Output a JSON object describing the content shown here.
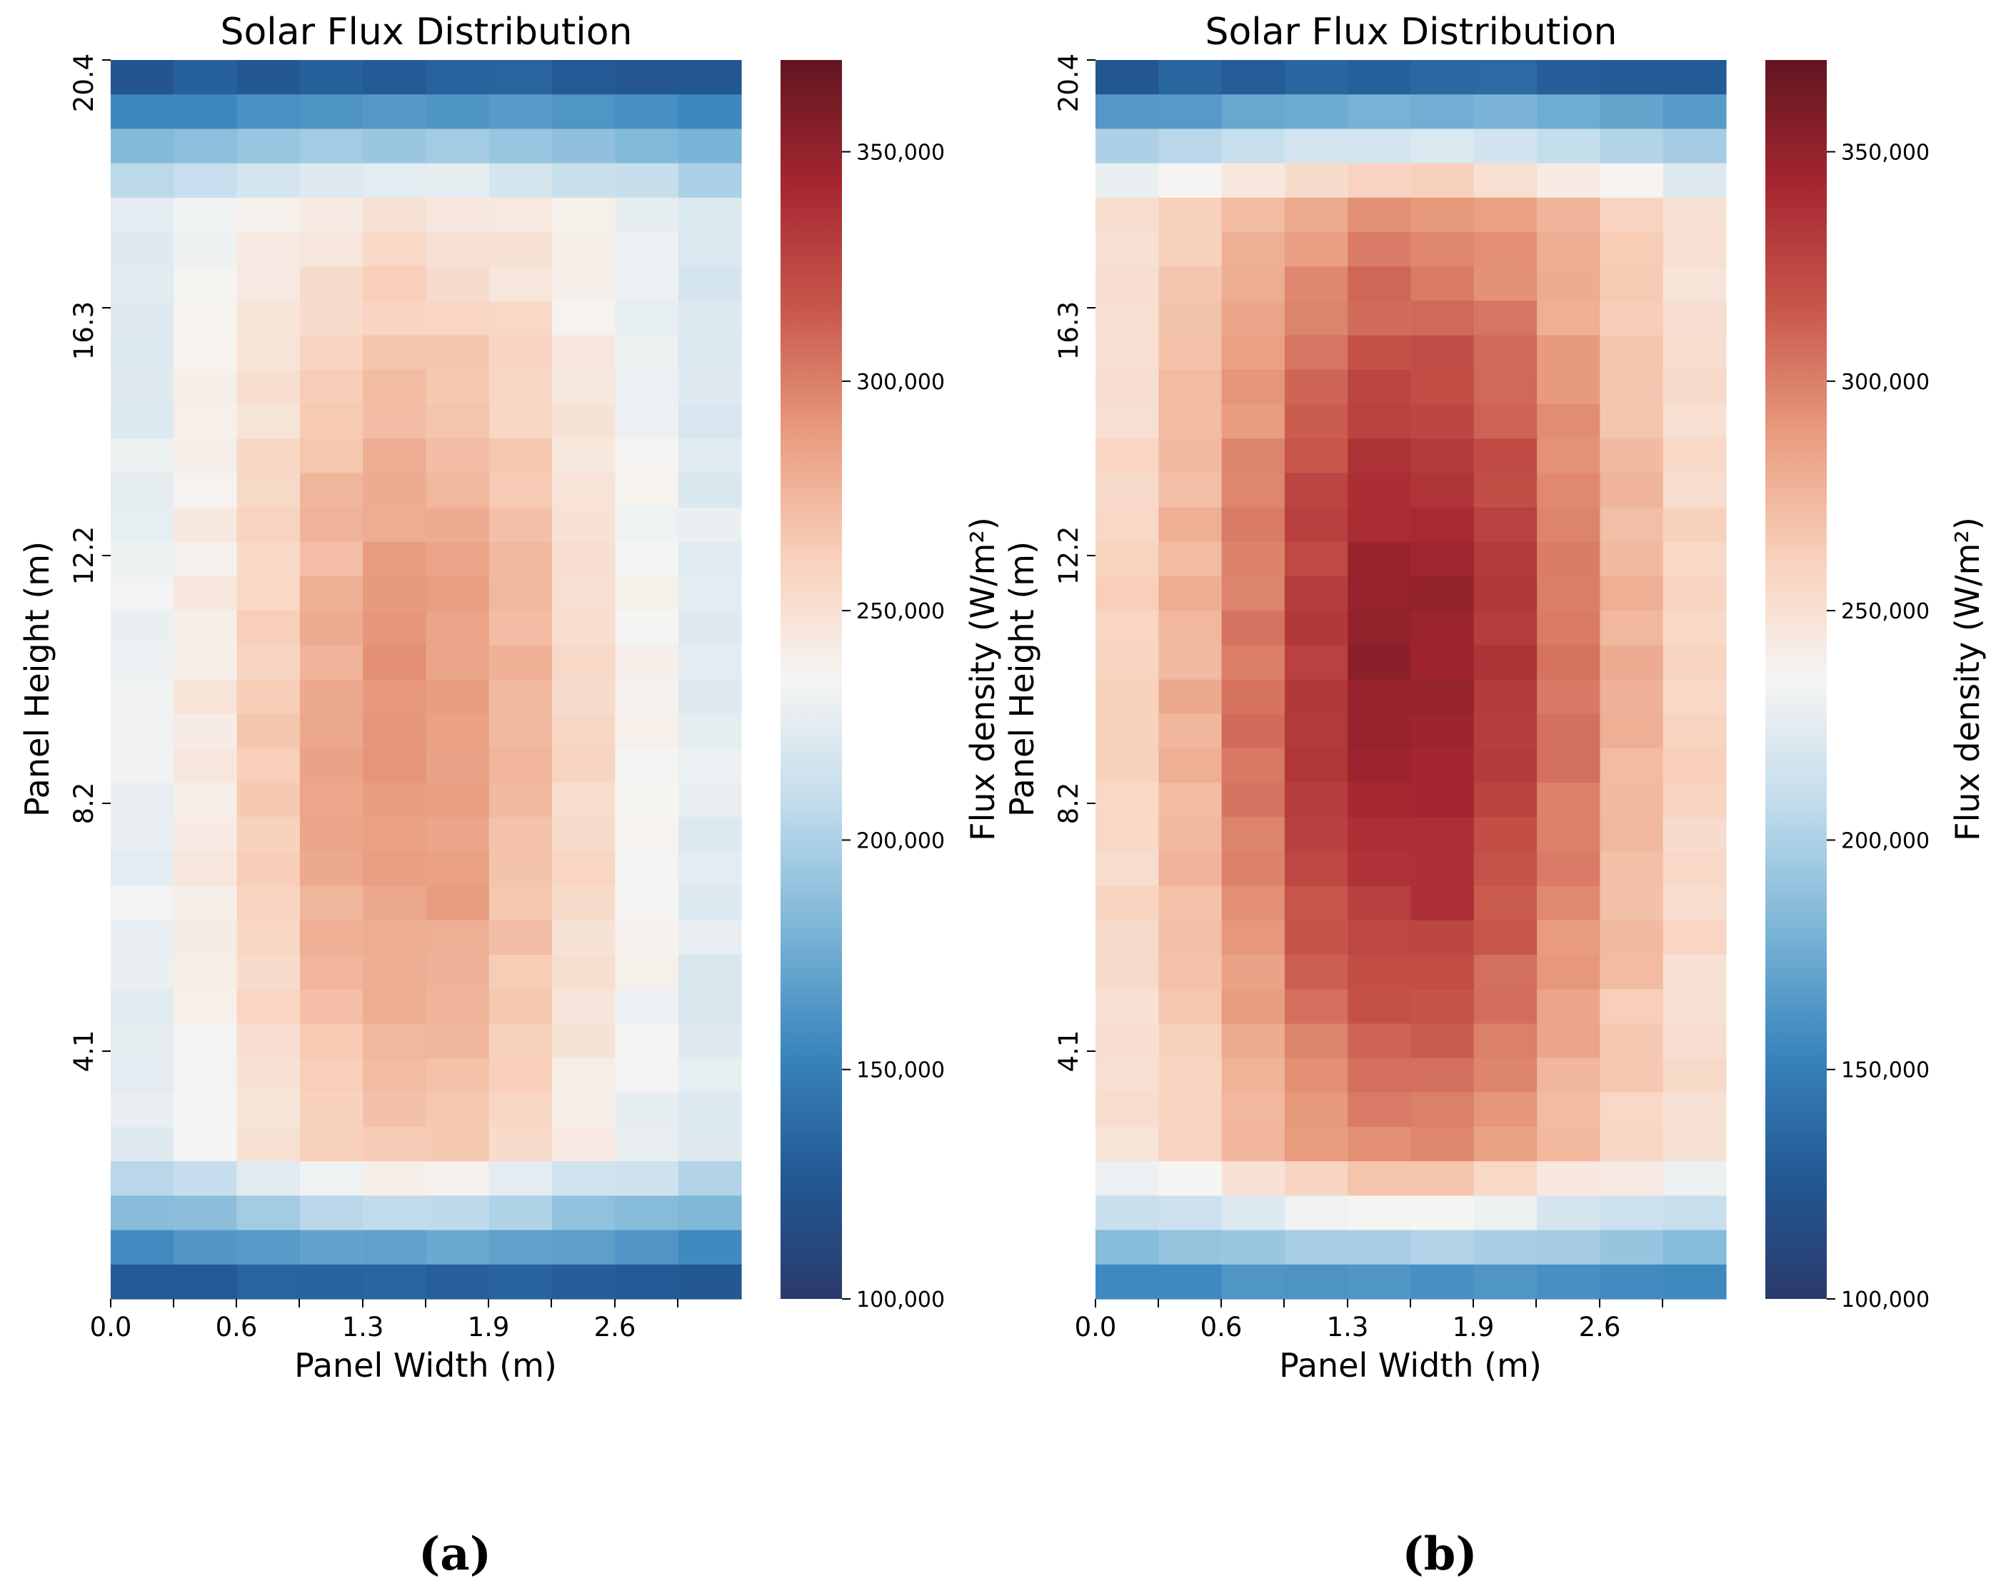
{
  "chart_data": [
    {
      "type": "heatmap",
      "panel_caption": "(a)",
      "title": "Solar Flux Distribution",
      "xlabel": "Panel Width (m)",
      "ylabel": "Panel Height (m)",
      "x_tick_labels": [
        "0.0",
        "0.6",
        "1.3",
        "1.9",
        "2.6"
      ],
      "y_tick_labels": [
        "20.4",
        "16.3",
        "12.2",
        "8.2",
        "4.1"
      ],
      "x_range": [
        0.0,
        3.2
      ],
      "y_range": [
        0.0,
        20.4
      ],
      "grid": false,
      "n_cols": 10,
      "n_rows": 36,
      "colormap": "RdBu_r",
      "colorbar": {
        "label": "Flux density (W/m²)",
        "range": [
          100000,
          370000
        ],
        "ticks": [
          "100,000",
          "150,000",
          "200,000",
          "250,000",
          "300,000",
          "350,000"
        ],
        "tick_values": [
          100000,
          150000,
          200000,
          250000,
          300000,
          350000
        ]
      },
      "field": {
        "peak_value": 292000,
        "peak_x_frac": 0.48,
        "peak_y_frac": 0.55,
        "sigma_x": 0.3,
        "sigma_y": 0.33,
        "top_value": 108000,
        "bottom_value": 110000,
        "side_value": 215000
      }
    },
    {
      "type": "heatmap",
      "panel_caption": "(b)",
      "title": "Solar Flux Distribution",
      "xlabel": "Panel Width (m)",
      "ylabel": "Panel Height (m)",
      "x_tick_labels": [
        "0.0",
        "0.6",
        "1.3",
        "1.9",
        "2.6"
      ],
      "y_tick_labels": [
        "20.4",
        "16.3",
        "12.2",
        "8.2",
        "4.1"
      ],
      "x_range": [
        0.0,
        3.2
      ],
      "y_range": [
        0.0,
        20.4
      ],
      "grid": false,
      "n_cols": 10,
      "n_rows": 36,
      "colormap": "RdBu_r",
      "colorbar": {
        "label": "Flux density (W/m²)",
        "range": [
          100000,
          370000
        ],
        "ticks": [
          "100,000",
          "150,000",
          "200,000",
          "250,000",
          "300,000",
          "350,000"
        ],
        "tick_values": [
          100000,
          150000,
          200000,
          250000,
          300000,
          350000
        ]
      },
      "field": {
        "peak_value": 352000,
        "peak_x_frac": 0.5,
        "peak_y_frac": 0.5,
        "sigma_x": 0.3,
        "sigma_y": 0.3,
        "top_value": 105000,
        "bottom_value": 140000,
        "side_value": 240000
      }
    }
  ]
}
